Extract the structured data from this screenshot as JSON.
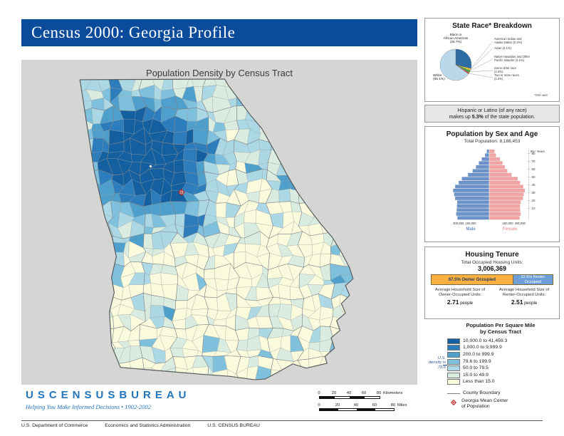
{
  "header": {
    "title": "Census 2000: Georgia Profile"
  },
  "map": {
    "title": "Population Density by Census Tract"
  },
  "race": {
    "title": "State Race* Breakdown",
    "footnote": "*One race",
    "black_label": [
      "Black or",
      "African American",
      "(28.7%)"
    ],
    "white_label": [
      "White",
      "(65.1%)"
    ],
    "small_labels": [
      [
        "American Indian and",
        "Alaska Native (0.3%)"
      ],
      [
        "Asian (2.1%)"
      ],
      [
        "Native Hawaiian and Other",
        "Pacific Islander (0.1%)"
      ],
      [
        "Some other race",
        "(2.4%)"
      ],
      [
        "Two or more races",
        "(1.4%)"
      ]
    ]
  },
  "hispanic_note": {
    "line1": "Hispanic or Latino (of any race)",
    "line2_prefix": "makes up ",
    "pct": "5.3%",
    "line2_suffix": " of the state population."
  },
  "pyramid": {
    "title": "Population by Sex and Age",
    "total_label": "Total Population: 8,186,453",
    "top_age_label": "85+ Years",
    "age_ticks": [
      "80",
      "70",
      "60",
      "50",
      "40",
      "30",
      "20",
      "10"
    ],
    "male_label": "Male",
    "female_label": "Female"
  },
  "housing": {
    "title": "Housing Tenure",
    "total_label": "Total Occupied Housing Units:",
    "total_value": "3,006,369",
    "owner_pct": 67.5,
    "renter_pct": 32.5,
    "owner_bar_label": "67.5% Owner Occupied",
    "renter_bar_label": "32.5% Renter Occupied",
    "owner_color": "#fbb040",
    "renter_color": "#6f9fd8",
    "owner_avg": {
      "label": "Average Household Size of Owner-Occupied Units:",
      "value": "2.71",
      "unit": "people"
    },
    "renter_avg": {
      "label": "Average Household Size of Renter-Occupied Units:",
      "value": "2.51",
      "unit": "people"
    }
  },
  "legend": {
    "title_line1": "Population Per Square Mile",
    "title_line2": "by Census Tract",
    "us_density_note": "U.S. density is 79.6",
    "classes": [
      {
        "label": "10,000.0 to 41,459.3",
        "color": "#135fa0"
      },
      {
        "label": "1,000.0 to 9,999.9",
        "color": "#2d7cbb"
      },
      {
        "label": "200.0 to 999.9",
        "color": "#4e9fcc"
      },
      {
        "label": "79.6 to 199.9",
        "color": "#7fc1dc"
      },
      {
        "label": "50.0 to 79.5",
        "color": "#abd8e4"
      },
      {
        "label": "15.0 to 49.9",
        "color": "#d9ecdf"
      },
      {
        "label": "Less than 15.0",
        "color": "#fafadc"
      }
    ],
    "county_boundary_label": "County Boundary",
    "mean_center_label_line1": "Georgia Mean Center",
    "mean_center_label_line2": "of Population"
  },
  "scalebar": {
    "ticks": [
      "0",
      "20",
      "40",
      "60",
      "80"
    ],
    "km_label": "Kilometers",
    "mi_label": "Miles"
  },
  "logo": {
    "name": "USCENSUSBUREAU",
    "tagline": "Helping You Make Informed Decisions • 1902-2002"
  },
  "footer": {
    "items": [
      "U.S. Department of Commerce",
      "Economics and Statistics Administration",
      "U.S. CENSUS BUREAU"
    ]
  },
  "chart_data": [
    {
      "type": "pie",
      "title": "State Race* Breakdown",
      "labels": [
        "Black or African American",
        "American Indian and Alaska Native",
        "Asian",
        "Native Hawaiian and Other Pacific Islander",
        "Some other race",
        "Two or more races",
        "White"
      ],
      "values": [
        28.7,
        0.3,
        2.1,
        0.1,
        2.4,
        1.4,
        65.1
      ],
      "colors": [
        "#2e6da4",
        "#8e6aae",
        "#f2d22e",
        "#f08a24",
        "#4ca64c",
        "#d9534f",
        "#b9d8ea"
      ],
      "footnote": "*One race"
    },
    {
      "type": "bar",
      "subtype": "population-pyramid",
      "title": "Population by Sex and Age",
      "total_population": "8,186,453",
      "categories": [
        "85+",
        "80-84",
        "75-79",
        "70-74",
        "65-69",
        "60-64",
        "55-59",
        "50-54",
        "45-49",
        "40-44",
        "35-39",
        "30-34",
        "25-29",
        "20-24",
        "15-19",
        "10-14",
        "5-9",
        "0-4"
      ],
      "series": [
        {
          "name": "Male",
          "color": "#6b93c9",
          "values": [
            22000,
            40000,
            72000,
            100000,
            128000,
            160000,
            205000,
            265000,
            295000,
            330000,
            350000,
            340000,
            330000,
            310000,
            312000,
            315000,
            320000,
            308000
          ]
        },
        {
          "name": "Female",
          "color": "#f2a3a3",
          "values": [
            50000,
            65000,
            103000,
            128000,
            150000,
            175000,
            215000,
            275000,
            300000,
            330000,
            345000,
            335000,
            325000,
            305000,
            298000,
            300000,
            305000,
            294000
          ]
        }
      ],
      "x_ticks": [
        "300,000",
        "180,000",
        "180,000",
        "300,000"
      ],
      "xlim": [
        0,
        360000
      ]
    },
    {
      "type": "bar",
      "subtype": "stacked-horizontal",
      "title": "Housing Tenure",
      "categories": [
        "Owner Occupied",
        "Renter Occupied"
      ],
      "values": [
        67.5,
        32.5
      ],
      "total_occupied_housing_units": "3,006,369",
      "avg_household_size_owner": 2.71,
      "avg_household_size_renter": 2.51
    },
    {
      "type": "choropleth",
      "title": "Population Density by Census Tract",
      "classes": [
        "10,000.0 to 41,459.3",
        "1,000.0 to 9,999.9",
        "200.0 to 999.9",
        "79.6 to 199.9",
        "50.0 to 79.5",
        "15.0 to 49.9",
        "Less than 15.0"
      ],
      "us_density": 79.6,
      "max_value": 41459.3
    }
  ]
}
